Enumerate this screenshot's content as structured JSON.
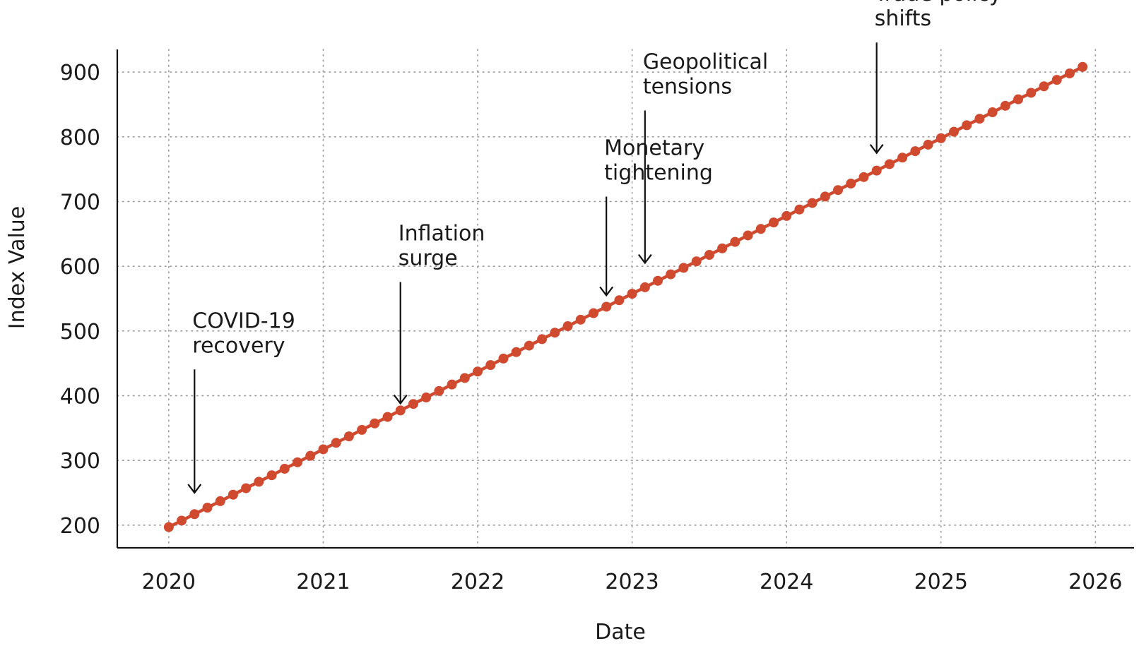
{
  "chart_data": {
    "type": "line",
    "title": "",
    "xlabel": "Date",
    "ylabel": "Index Value",
    "x_tick_labels": [
      "2020",
      "2021",
      "2022",
      "2023",
      "2024",
      "2025",
      "2026"
    ],
    "y_tick_labels": [
      "200",
      "300",
      "400",
      "500",
      "600",
      "700",
      "800",
      "900"
    ],
    "xlim": [
      "2019-09",
      "2026-04"
    ],
    "ylim": [
      165,
      935
    ],
    "x_ticks": [
      "2020-01",
      "2021-01",
      "2022-01",
      "2023-01",
      "2024-01",
      "2025-01",
      "2026-01"
    ],
    "y_ticks": [
      200,
      300,
      400,
      500,
      600,
      700,
      800,
      900
    ],
    "grid": true,
    "legend": "none",
    "series": [
      {
        "color": "#d04a30",
        "marker": "circle",
        "x_start": "2020-01",
        "x_end": "2025-12",
        "frequency": "monthly",
        "y_start": 197,
        "y_end": 908
      }
    ],
    "annotations": [
      {
        "lines": [
          "COVID-19",
          "recovery"
        ],
        "x": "2020-03",
        "y": 250,
        "label_y": 505
      },
      {
        "lines": [
          "Inflation",
          "surge"
        ],
        "x": "2021-07",
        "y": 388,
        "label_y": 640
      },
      {
        "lines": [
          "Monetary",
          "tightening"
        ],
        "x": "2022-11",
        "y": 555,
        "label_y": 772
      },
      {
        "lines": [
          "Geopolitical",
          "tensions"
        ],
        "x": "2023-02",
        "y": 605,
        "label_y": 905
      },
      {
        "lines": [
          "Trade policy",
          "shifts"
        ],
        "x": "2024-08",
        "y": 775,
        "label_y": 1010
      }
    ]
  }
}
